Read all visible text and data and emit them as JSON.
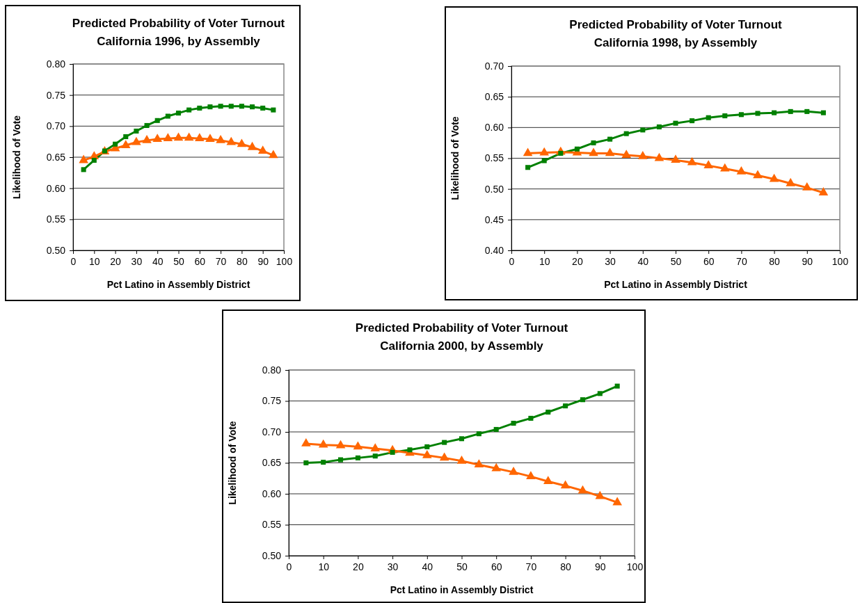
{
  "chart_data": [
    {
      "type": "line",
      "title": "Predicted Probability of Voter Turnout",
      "subtitle": "California 1996, by Assembly",
      "xlabel": "Pct Latino in Assembly District",
      "ylabel": "Likelihood of Vote",
      "x": [
        5,
        10,
        15,
        20,
        25,
        30,
        35,
        40,
        45,
        50,
        55,
        60,
        65,
        70,
        75,
        80,
        85,
        90,
        95
      ],
      "xlim": [
        0,
        100
      ],
      "xticks": [
        0,
        10,
        20,
        30,
        40,
        50,
        60,
        70,
        80,
        90,
        100
      ],
      "ylim": [
        0.5,
        0.8
      ],
      "yticks": [
        {
          "value": 0.5,
          "label": "0.50"
        },
        {
          "value": 0.55,
          "label": "0.55"
        },
        {
          "value": 0.6,
          "label": "0.60"
        },
        {
          "value": 0.65,
          "label": "0.65"
        },
        {
          "value": 0.7,
          "label": "0.70"
        },
        {
          "value": 0.75,
          "label": "0.75"
        },
        {
          "value": 0.8,
          "label": "0.80"
        }
      ],
      "grid": "y",
      "line_style": "solid",
      "series": [
        {
          "color": "#008000",
          "marker": "square",
          "values": [
            0.63,
            0.645,
            0.66,
            0.671,
            0.683,
            0.692,
            0.701,
            0.709,
            0.716,
            0.721,
            0.726,
            0.729,
            0.731,
            0.732,
            0.732,
            0.732,
            0.731,
            0.729,
            0.726
          ]
        },
        {
          "color": "#ff6600",
          "marker": "triangle",
          "values": [
            0.645,
            0.651,
            0.659,
            0.664,
            0.669,
            0.674,
            0.677,
            0.679,
            0.68,
            0.681,
            0.681,
            0.68,
            0.679,
            0.677,
            0.674,
            0.671,
            0.666,
            0.66,
            0.653
          ]
        }
      ]
    },
    {
      "type": "line",
      "title": "Predicted Probability of Voter Turnout",
      "subtitle": "California 1998, by Assembly",
      "xlabel": "Pct Latino in Assembly District",
      "ylabel": "Likelihood of Vote",
      "x": [
        5,
        10,
        15,
        20,
        25,
        30,
        35,
        40,
        45,
        50,
        55,
        60,
        65,
        70,
        75,
        80,
        85,
        90,
        95
      ],
      "xlim": [
        0,
        100
      ],
      "xticks": [
        0,
        10,
        20,
        30,
        40,
        50,
        60,
        70,
        80,
        90,
        100
      ],
      "ylim": [
        0.4,
        0.7
      ],
      "yticks": [
        {
          "value": 0.4,
          "label": "0.40"
        },
        {
          "value": 0.45,
          "label": "0.45"
        },
        {
          "value": 0.5,
          "label": "0.50"
        },
        {
          "value": 0.55,
          "label": "0.55"
        },
        {
          "value": 0.6,
          "label": "0.60"
        },
        {
          "value": 0.65,
          "label": "0.65"
        },
        {
          "value": 0.7,
          "label": "0.70"
        }
      ],
      "grid": "y",
      "line_style": "solid",
      "series": [
        {
          "color": "#008000",
          "marker": "square",
          "values": [
            0.535,
            0.546,
            0.558,
            0.565,
            0.575,
            0.581,
            0.59,
            0.596,
            0.601,
            0.607,
            0.611,
            0.616,
            0.619,
            0.621,
            0.623,
            0.624,
            0.626,
            0.626,
            0.624
          ]
        },
        {
          "color": "#ff6600",
          "marker": "triangle",
          "values": [
            0.558,
            0.559,
            0.56,
            0.559,
            0.558,
            0.558,
            0.555,
            0.553,
            0.55,
            0.547,
            0.543,
            0.538,
            0.533,
            0.528,
            0.522,
            0.516,
            0.509,
            0.502,
            0.494
          ]
        }
      ]
    },
    {
      "type": "line",
      "title": "Predicted Probability of Voter Turnout",
      "subtitle": "California 2000, by Assembly",
      "xlabel": "Pct Latino in Assembly District",
      "ylabel": "Likelihood of Vote",
      "x": [
        5,
        10,
        15,
        20,
        25,
        30,
        35,
        40,
        45,
        50,
        55,
        60,
        65,
        70,
        75,
        80,
        85,
        90,
        95
      ],
      "xlim": [
        0,
        100
      ],
      "xticks": [
        0,
        10,
        20,
        30,
        40,
        50,
        60,
        70,
        80,
        90,
        100
      ],
      "ylim": [
        0.5,
        0.8
      ],
      "yticks": [
        {
          "value": 0.5,
          "label": "0.50"
        },
        {
          "value": 0.55,
          "label": "0.55"
        },
        {
          "value": 0.6,
          "label": "0.60"
        },
        {
          "value": 0.65,
          "label": "0.65"
        },
        {
          "value": 0.7,
          "label": "0.70"
        },
        {
          "value": 0.75,
          "label": "0.75"
        },
        {
          "value": 0.8,
          "label": "0.80"
        }
      ],
      "grid": "y",
      "line_style": "solid",
      "series": [
        {
          "color": "#008000",
          "marker": "square",
          "values": [
            0.65,
            0.651,
            0.655,
            0.658,
            0.661,
            0.667,
            0.671,
            0.676,
            0.683,
            0.689,
            0.697,
            0.704,
            0.714,
            0.722,
            0.732,
            0.742,
            0.752,
            0.762,
            0.774
          ]
        },
        {
          "color": "#ff6600",
          "marker": "triangle",
          "values": [
            0.681,
            0.679,
            0.678,
            0.676,
            0.673,
            0.67,
            0.666,
            0.662,
            0.658,
            0.653,
            0.647,
            0.641,
            0.635,
            0.628,
            0.62,
            0.613,
            0.605,
            0.596,
            0.586
          ]
        }
      ]
    }
  ]
}
